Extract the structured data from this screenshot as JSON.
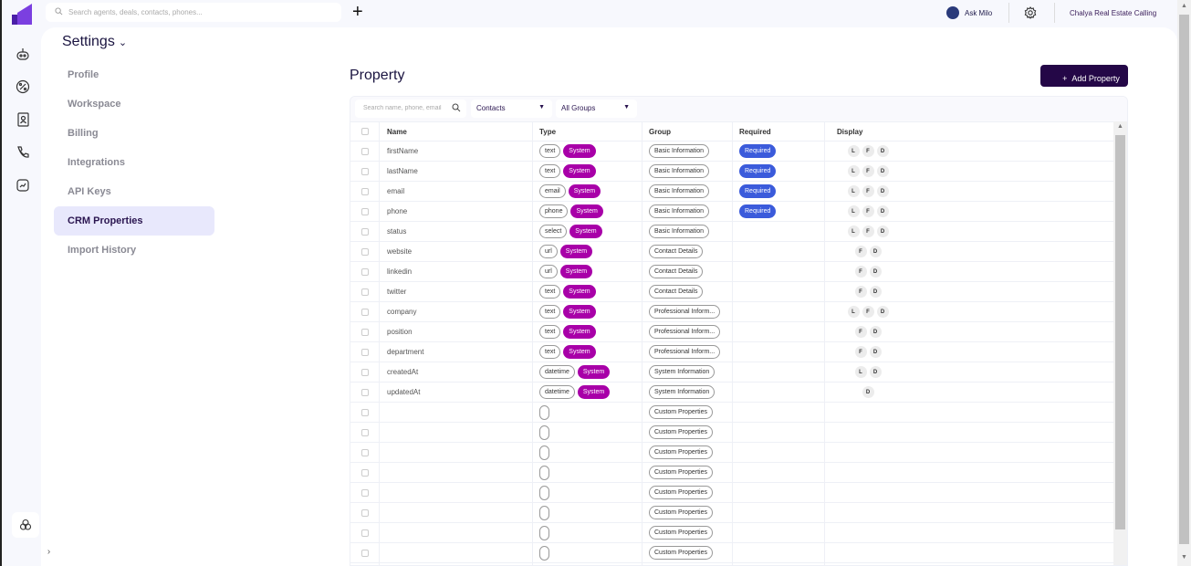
{
  "topbar": {
    "search_placeholder": "Search agents, deals, contacts, phones...",
    "ask_label": "Ask Milo",
    "org_name": "Chalya Real Estate Calling"
  },
  "rail": {
    "icons": [
      "robot-icon",
      "percent-badge-icon",
      "contacts-book-icon",
      "phone-icon",
      "chart-icon"
    ],
    "bottom_icon": "circles-icon"
  },
  "settings": {
    "title": "Settings",
    "nav": [
      {
        "label": "Profile"
      },
      {
        "label": "Workspace"
      },
      {
        "label": "Billing"
      },
      {
        "label": "Integrations"
      },
      {
        "label": "API Keys"
      },
      {
        "label": "CRM Properties",
        "active": true
      },
      {
        "label": "Import History"
      }
    ]
  },
  "main": {
    "title": "Property",
    "add_label": "Add Property",
    "filters": {
      "search_placeholder": "Search name, phone, email",
      "object": "Contacts",
      "group": "All Groups"
    },
    "columns": [
      "Name",
      "Type",
      "Group",
      "Required",
      "Display"
    ],
    "rows": [
      {
        "name": "firstName",
        "type": "text",
        "system": "System",
        "group": "Basic Information",
        "required": "Required",
        "display": [
          "L",
          "F",
          "D"
        ]
      },
      {
        "name": "lastName",
        "type": "text",
        "system": "System",
        "group": "Basic Information",
        "required": "Required",
        "display": [
          "L",
          "F",
          "D"
        ]
      },
      {
        "name": "email",
        "type": "email",
        "system": "System",
        "group": "Basic Information",
        "required": "Required",
        "display": [
          "L",
          "F",
          "D"
        ]
      },
      {
        "name": "phone",
        "type": "phone",
        "system": "System",
        "group": "Basic Information",
        "required": "Required",
        "display": [
          "L",
          "F",
          "D"
        ]
      },
      {
        "name": "status",
        "type": "select",
        "system": "System",
        "group": "Basic Information",
        "required": "",
        "display": [
          "L",
          "F",
          "D"
        ]
      },
      {
        "name": "website",
        "type": "url",
        "system": "System",
        "group": "Contact Details",
        "required": "",
        "display": [
          "F",
          "D"
        ]
      },
      {
        "name": "linkedin",
        "type": "url",
        "system": "System",
        "group": "Contact Details",
        "required": "",
        "display": [
          "F",
          "D"
        ]
      },
      {
        "name": "twitter",
        "type": "text",
        "system": "System",
        "group": "Contact Details",
        "required": "",
        "display": [
          "F",
          "D"
        ]
      },
      {
        "name": "company",
        "type": "text",
        "system": "System",
        "group": "Professional Inform...",
        "required": "",
        "display": [
          "L",
          "F",
          "D"
        ]
      },
      {
        "name": "position",
        "type": "text",
        "system": "System",
        "group": "Professional Inform...",
        "required": "",
        "display": [
          "F",
          "D"
        ]
      },
      {
        "name": "department",
        "type": "text",
        "system": "System",
        "group": "Professional Inform...",
        "required": "",
        "display": [
          "F",
          "D"
        ]
      },
      {
        "name": "createdAt",
        "type": "datetime",
        "system": "System",
        "group": "System Information",
        "required": "",
        "display": [
          "L",
          "D"
        ]
      },
      {
        "name": "updatedAt",
        "type": "datetime",
        "system": "System",
        "group": "System Information",
        "required": "",
        "display": [
          "D"
        ]
      },
      {
        "name": "",
        "type": "",
        "system": "",
        "group": "Custom Properties",
        "required": "",
        "display": []
      },
      {
        "name": "",
        "type": "",
        "system": "",
        "group": "Custom Properties",
        "required": "",
        "display": []
      },
      {
        "name": "",
        "type": "",
        "system": "",
        "group": "Custom Properties",
        "required": "",
        "display": []
      },
      {
        "name": "",
        "type": "",
        "system": "",
        "group": "Custom Properties",
        "required": "",
        "display": []
      },
      {
        "name": "",
        "type": "",
        "system": "",
        "group": "Custom Properties",
        "required": "",
        "display": []
      },
      {
        "name": "",
        "type": "",
        "system": "",
        "group": "Custom Properties",
        "required": "",
        "display": []
      },
      {
        "name": "",
        "type": "",
        "system": "",
        "group": "Custom Properties",
        "required": "",
        "display": []
      },
      {
        "name": "",
        "type": "",
        "system": "",
        "group": "Custom Properties",
        "required": "",
        "display": []
      },
      {
        "name": "",
        "type": "",
        "system": "",
        "group": "Custom Properties",
        "required": "",
        "display": []
      }
    ]
  },
  "colors": {
    "accent": "#240747",
    "system": "#a800a8",
    "required": "#3b5bdb",
    "active_nav": "#e8e8fc"
  }
}
